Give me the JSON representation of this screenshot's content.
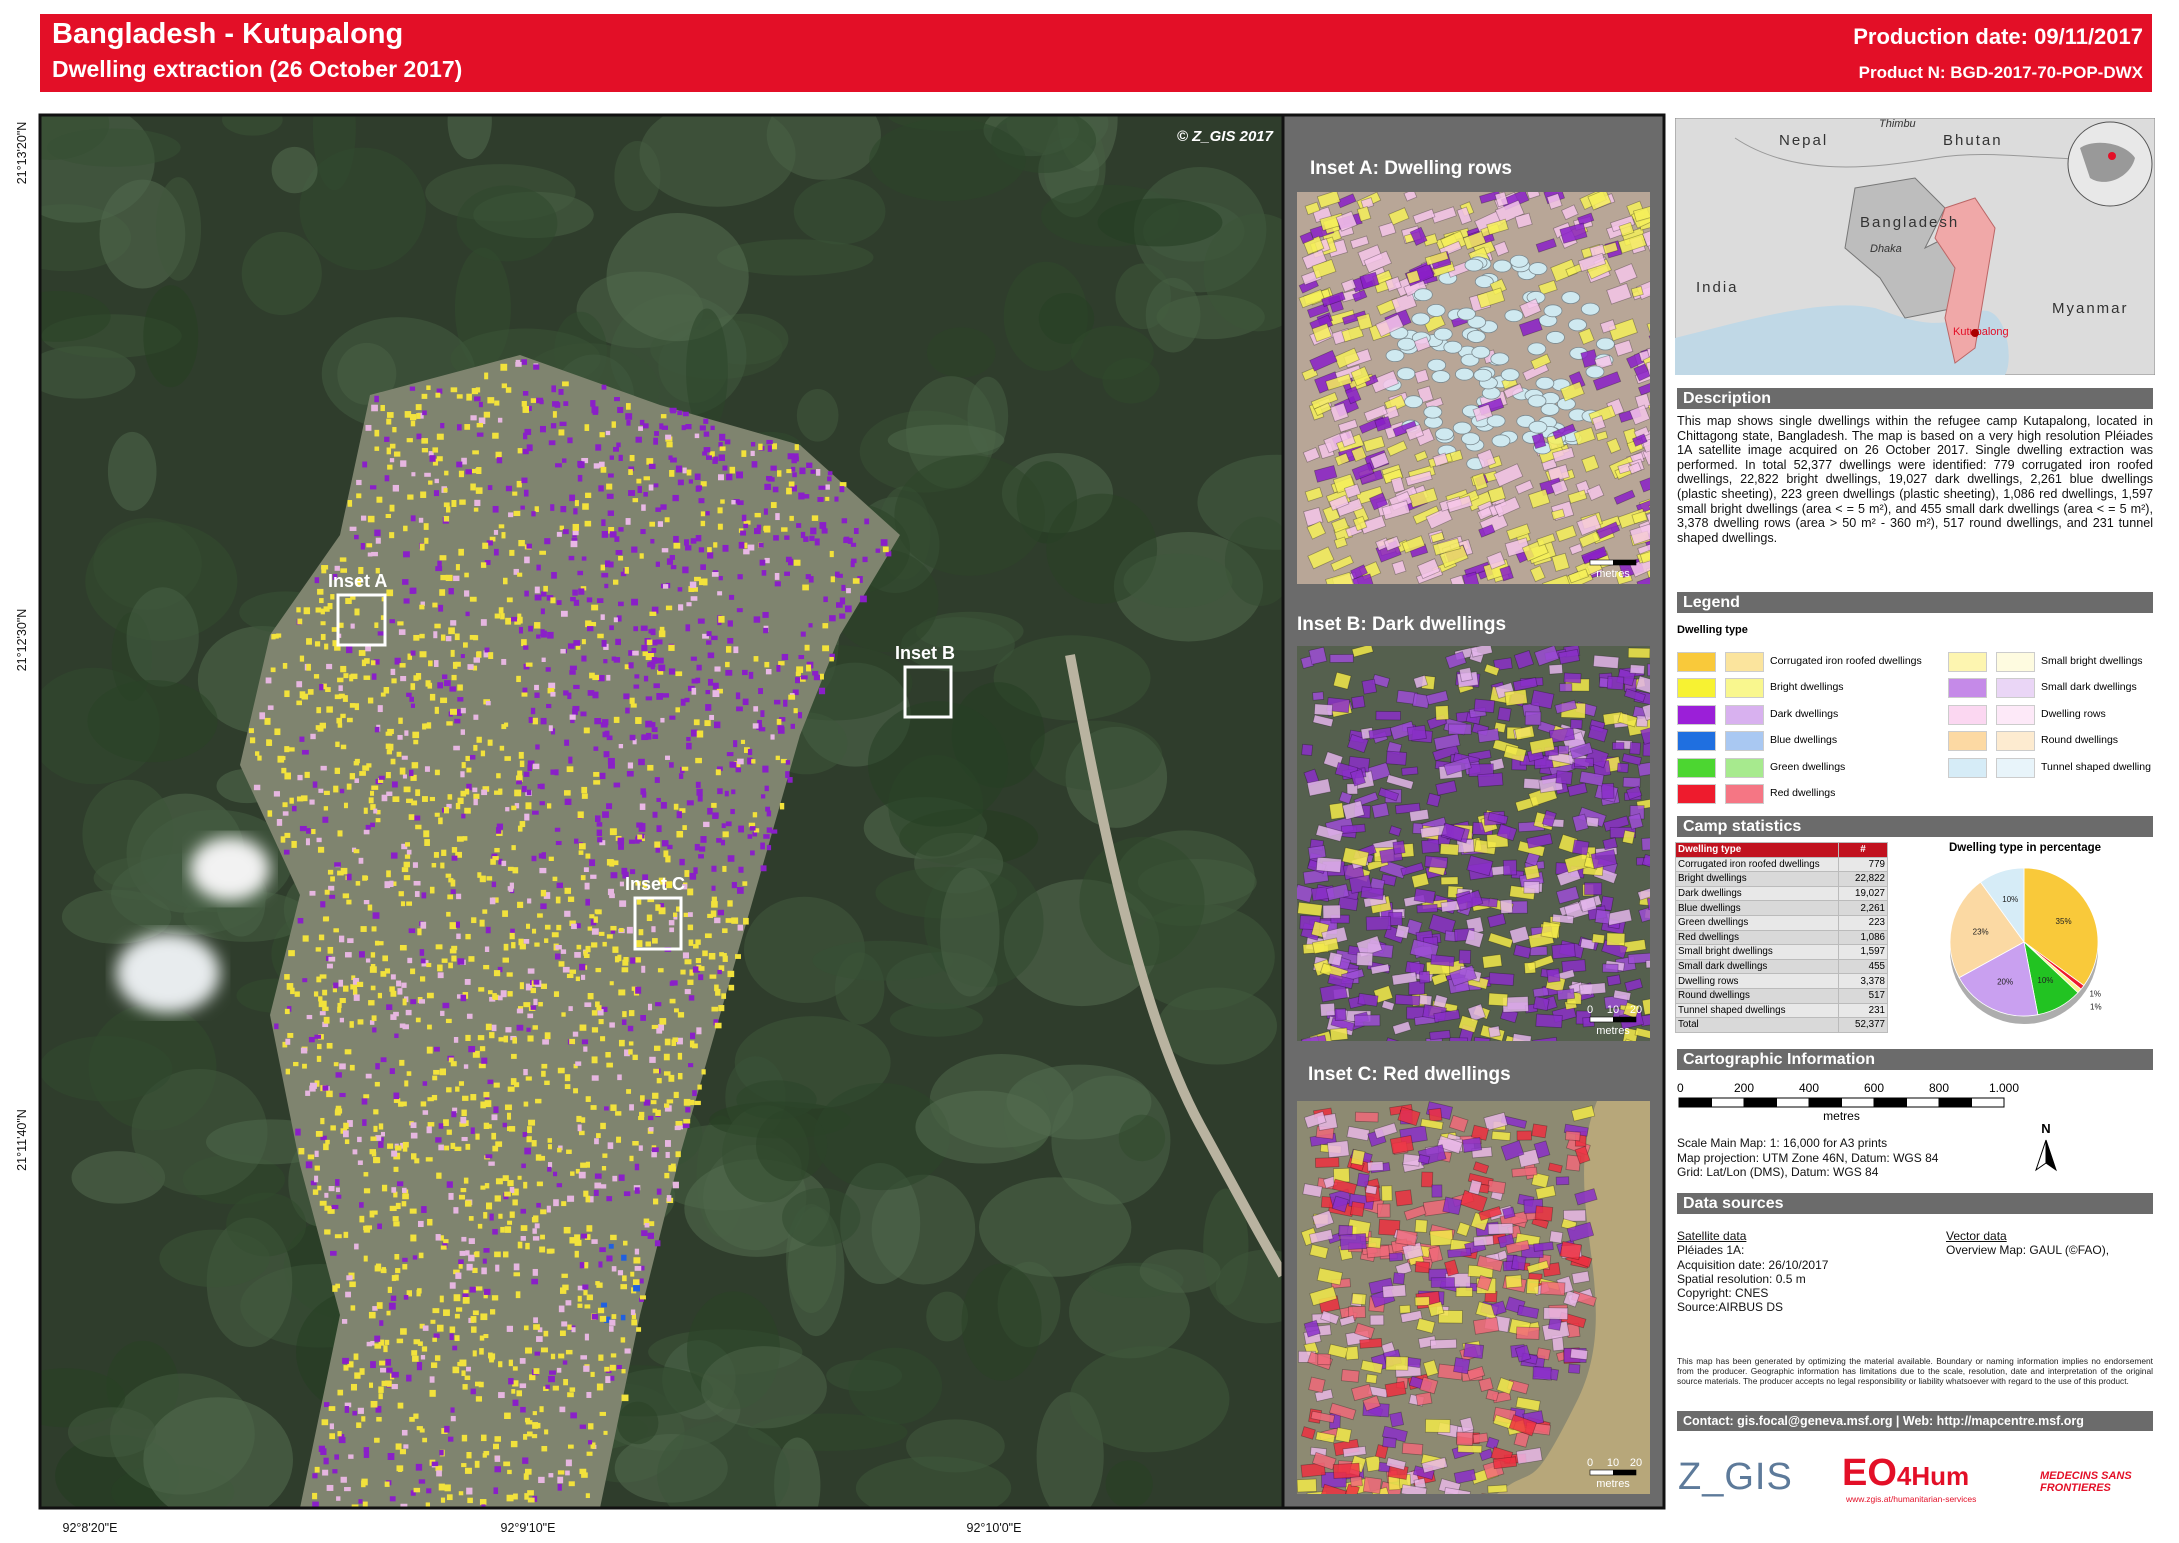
{
  "header": {
    "title": "Bangladesh - Kutupalong",
    "subtitle": "Dwelling extraction (26 October 2017)",
    "production_date": "Production date: 09/11/2017",
    "product_n": "Product N: BGD-2017-70-POP-DWX"
  },
  "map": {
    "copyright": "© Z_GIS 2017",
    "inset_labels": [
      "Inset A",
      "Inset B",
      "Inset C"
    ],
    "lat_labels": [
      "21°13'20\"N",
      "21°12'30\"N",
      "21°11'40\"N"
    ],
    "lon_labels": [
      "92°8'20\"E",
      "92°9'10\"E",
      "92°10'0\"E"
    ]
  },
  "insets": [
    {
      "title": "Inset A: Dwelling rows",
      "scale_unit": "metres"
    },
    {
      "title": "Inset B: Dark dwellings",
      "scale_ticks": [
        "0",
        "10",
        "20"
      ],
      "scale_unit": "metres"
    },
    {
      "title": "Inset C: Red dwellings",
      "scale_ticks": [
        "0",
        "10",
        "20"
      ],
      "scale_unit": "metres"
    }
  ],
  "overview": {
    "labels": [
      "Nepal",
      "Thimbu",
      "Bhutan",
      "Bangladesh",
      "Dhaka",
      "India",
      "Myanmar",
      "Kutupalong"
    ]
  },
  "description": {
    "heading": "Description",
    "text": "This map shows single dwellings within the refugee camp Kutapalong, located in Chittagong state, Bangladesh. The map is based on a very high resolution Pléiades 1A satellite image acquired on 26 October 2017. Single dwelling extraction was performed. In total 52,377 dwellings were identified: 779 corrugated iron roofed dwellings, 22,822 bright dwellings, 19,027 dark dwellings, 2,261 blue dwellings (plastic sheeting), 223 green dwellings (plastic sheeting), 1,086 red dwellings, 1,597 small bright dwellings (area < = 5 m²), and 455 small dark dwellings (area < = 5 m²), 3,378 dwelling rows (area > 50 m² - 360 m²), 517 round dwellings, and 231 tunnel shaped dwellings."
  },
  "legend": {
    "heading": "Legend",
    "subheading": "Dwelling type",
    "items": [
      {
        "label": "Corrugated iron roofed dwellings",
        "colors": [
          "#f9c93a",
          "#fbe49d"
        ]
      },
      {
        "label": "Bright dwellings",
        "colors": [
          "#f7f232",
          "#f9f78e"
        ]
      },
      {
        "label": "Dark dwellings",
        "colors": [
          "#9b1fd8",
          "#d8b1ef"
        ]
      },
      {
        "label": "Blue dwellings",
        "colors": [
          "#1f6fe0",
          "#a9c8f2"
        ]
      },
      {
        "label": "Green dwellings",
        "colors": [
          "#4cd631",
          "#a7ea8e"
        ]
      },
      {
        "label": "Red dwellings",
        "colors": [
          "#ee1b2d",
          "#f57684"
        ]
      },
      {
        "label": "Small bright dwellings",
        "colors": [
          "#fdf5b0",
          "#fefbe0"
        ]
      },
      {
        "label": "Small dark dwellings",
        "colors": [
          "#c58ae8",
          "#ead6f6"
        ]
      },
      {
        "label": "Dwelling rows",
        "colors": [
          "#fbd7f1",
          "#fde9f8"
        ]
      },
      {
        "label": "Round dwellings",
        "colors": [
          "#fcd9a3",
          "#fdebd0"
        ]
      },
      {
        "label": "Tunnel shaped dwelling",
        "colors": [
          "#d6ecf7",
          "#e8f4fa"
        ]
      }
    ]
  },
  "stats": {
    "heading": "Camp statistics",
    "header": [
      "Dwelling type",
      "#"
    ],
    "rows": [
      [
        "Corrugated iron roofed dwellings",
        "779"
      ],
      [
        "Bright dwellings",
        "22,822"
      ],
      [
        "Dark dwellings",
        "19,027"
      ],
      [
        "Blue dwellings",
        "2,261"
      ],
      [
        "Green dwellings",
        "223"
      ],
      [
        "Red dwellings",
        "1,086"
      ],
      [
        "Small bright dwellings",
        "1,597"
      ],
      [
        "Small dark dwellings",
        "455"
      ],
      [
        "Dwelling rows",
        "3,378"
      ],
      [
        "Round dwellings",
        "517"
      ],
      [
        "Tunnel shaped dwellings",
        "231"
      ],
      [
        "Total",
        "52,377"
      ]
    ]
  },
  "chart_data": {
    "type": "pie",
    "title": "Dwelling type in percentage",
    "values": [
      35,
      1,
      1,
      10,
      20,
      23,
      10
    ],
    "value_labels": [
      "35%",
      "1%",
      "1%",
      "10%",
      "20%",
      "23%",
      "10%"
    ],
    "colors": [
      "#f9c93a",
      "#ee1b2d",
      "#f9f78e",
      "#22c322",
      "#c9a0f0",
      "#fbd9a3",
      "#d6ecf7"
    ]
  },
  "carto": {
    "heading": "Cartographic Information",
    "scale_ticks": [
      "0",
      "200",
      "400",
      "600",
      "800",
      "1.000"
    ],
    "scale_unit": "metres",
    "north": "N",
    "lines": [
      "Scale Main Map: 1: 16,000 for A3 prints",
      "Map projection: UTM Zone 46N, Datum: WGS 84",
      "Grid: Lat/Lon (DMS), Datum: WGS 84"
    ]
  },
  "data_sources": {
    "heading": "Data sources",
    "satellite": {
      "title": "Satellite data",
      "lines": [
        "Pléiades 1A:",
        "Acquisition date: 26/10/2017",
        "Spatial resolution: 0.5 m",
        "Copyright: CNES",
        "Source:AIRBUS DS"
      ]
    },
    "vector": {
      "title": "Vector data",
      "lines": [
        "Overview Map: GAUL (©FAO),"
      ]
    }
  },
  "disclaimer": "This map has been generated by optimizing the material available. Boundary or naming information implies no endorsement from the producer. Geographic information has limitations due to the scale, resolution, date and interpretation of the original source materials. The producer accepts no legal responsibility or liability whatsoever with regard to the use of this product.",
  "contact": "Contact: gis.focal@geneva.msf.org | Web: http://mapcentre.msf.org",
  "logos": {
    "zgis": "Z_GIS",
    "eo": "EO",
    "hum": "4Hum",
    "eo_url": "www.zgis.at/humanitarian-services",
    "msf": "MEDECINS SANS FRONTIERES"
  }
}
